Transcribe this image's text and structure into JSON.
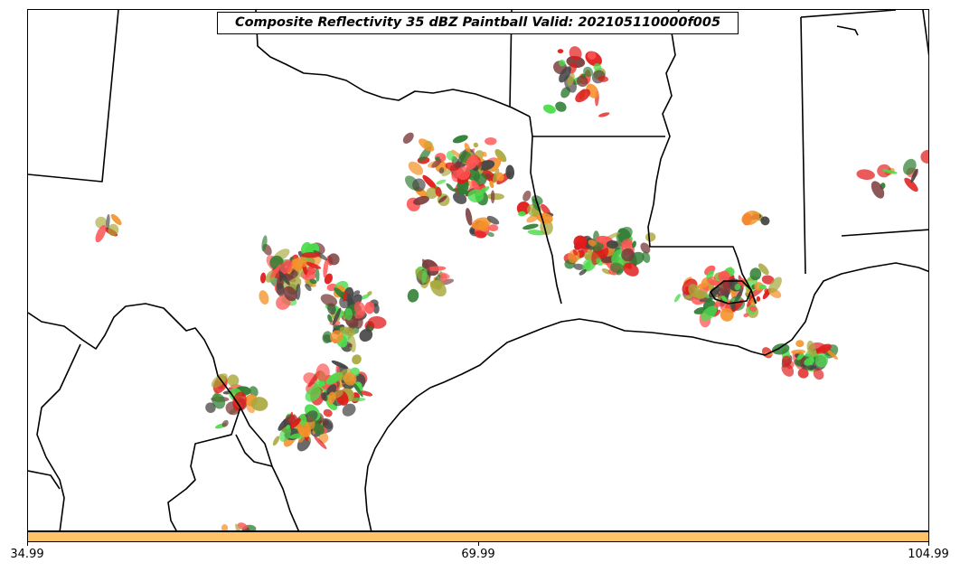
{
  "title": "Composite Reflectivity 35 dBZ Paintball Valid: 202105110000f005",
  "colorbar": {
    "color": "#ffc266",
    "ticks": [
      "34.99",
      "69.99",
      "104.99"
    ]
  },
  "paint_colors": {
    "bright_green": "#4bdc4b",
    "dark_green": "#2e7d32",
    "olive": "#a8a83c",
    "orange": "#f5922a",
    "red": "#e01a1a",
    "light_red": "#ff5555",
    "brown": "#7a3b3b",
    "dark_gray": "#444444"
  },
  "map": {
    "boundary_color": "#000000",
    "background_color": "#ffffff"
  }
}
